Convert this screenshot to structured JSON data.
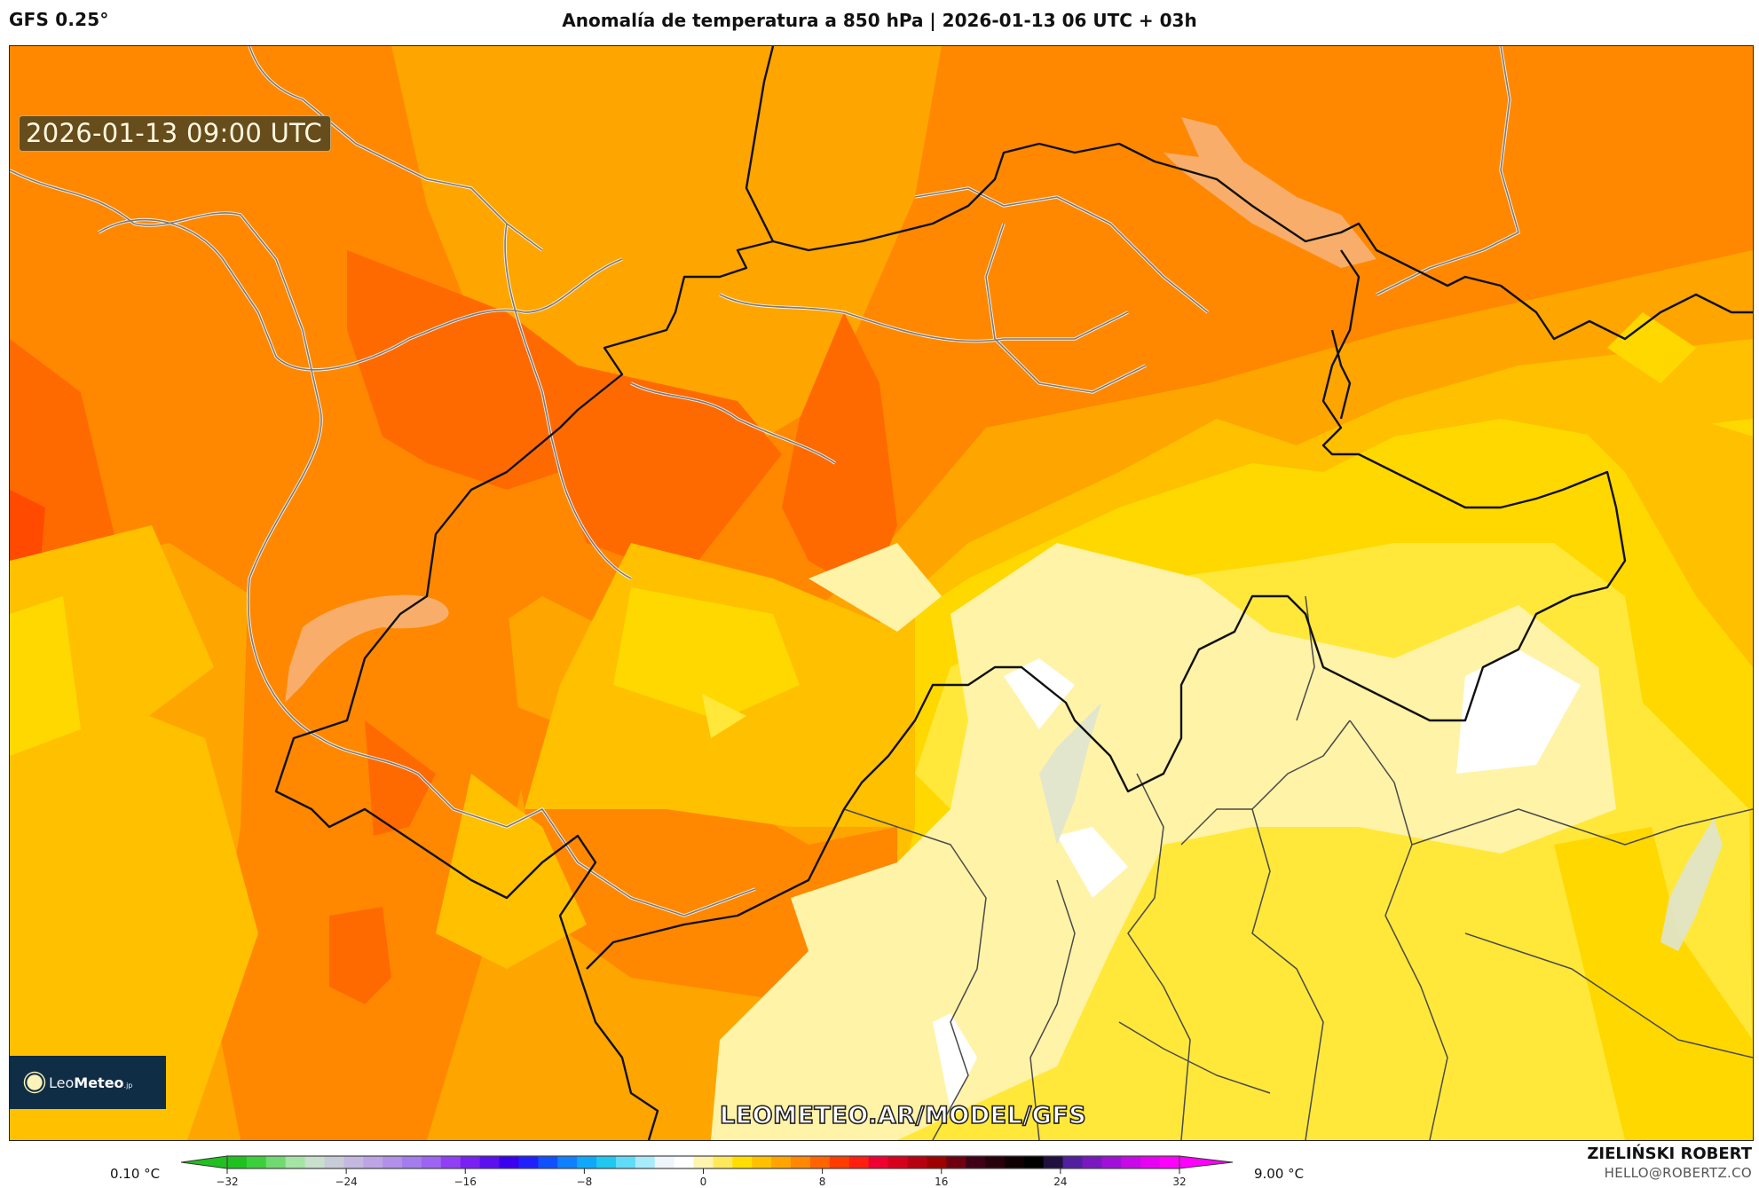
{
  "header": {
    "model": "GFS 0.25°",
    "title": "Anomalía de temperatura a 850 hPa | 2026-01-13 06 UTC + 03h"
  },
  "map": {
    "valid_time": "2026-01-13 09:00 UTC",
    "watermark": "LEOMETEO.AR/MODEL/GFS",
    "logo": {
      "brand_light": "Leo",
      "brand_bold": "Meteo",
      "suffix": ".jp"
    },
    "icons": [
      "sun-logo-icon"
    ],
    "field_colors": {
      "below_1": "#ffffff",
      "1_2": "#fff3a8",
      "2_3": "#ffe83a",
      "3_4": "#ffd800",
      "4_5": "#ffc000",
      "5_6": "#ffa500",
      "6_7": "#ff8800",
      "7_8": "#ff6a00",
      "8_9": "#ff4a00",
      "lake": "#f8b070",
      "border_country": "#111111",
      "border_region": "#6a6a6a"
    }
  },
  "colorbar": {
    "min_label": "0.10 °C",
    "max_label": "9.00 °C",
    "ticks": [
      "-32",
      "-24",
      "-16",
      "-8",
      "0",
      "8",
      "16",
      "24",
      "32"
    ],
    "stops": [
      "#20c020",
      "#3ccf3c",
      "#70da70",
      "#a4e4a4",
      "#c8e0cc",
      "#c8ccd8",
      "#c4b8e0",
      "#bda4e4",
      "#b090e8",
      "#a47cec",
      "#9c64f0",
      "#9040f4",
      "#7a20f4",
      "#5a10f0",
      "#3a00f0",
      "#2020ff",
      "#1050ff",
      "#1080ff",
      "#10a8f8",
      "#20c8f0",
      "#60dcf8",
      "#a8ecfc",
      "#eef6fb",
      "#ffffff",
      "#fff5b0",
      "#ffe95a",
      "#ffde00",
      "#ffc000",
      "#ffa400",
      "#ff8800",
      "#ff6400",
      "#ff3c00",
      "#ff1e10",
      "#f00030",
      "#d8001c",
      "#b80010",
      "#a00000",
      "#700010",
      "#400018",
      "#28000c",
      "#100004",
      "#000000",
      "#201040",
      "#5020a0",
      "#7a18c0",
      "#a010d8",
      "#c808e8",
      "#e800f4",
      "#ff00ff"
    ]
  },
  "author": {
    "name": "ZIELIŃSKI ROBERT",
    "email": "HELLO@ROBERTZ.CO"
  }
}
